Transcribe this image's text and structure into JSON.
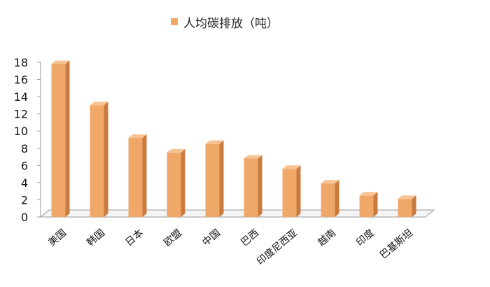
{
  "chart_data": {
    "type": "bar",
    "title": "",
    "xlabel": "",
    "ylabel": "",
    "ylim": [
      0,
      18
    ],
    "yticks": [
      0,
      2,
      4,
      6,
      8,
      10,
      12,
      14,
      16,
      18
    ],
    "categories": [
      "美国",
      "韩国",
      "日本",
      "欧盟",
      "中国",
      "巴西",
      "印度尼西亚",
      "越南",
      "印度",
      "巴基斯坦"
    ],
    "series": [
      {
        "name": "人均碳排放（吨）",
        "values": [
          17.8,
          13.0,
          9.2,
          7.5,
          8.5,
          6.8,
          5.6,
          3.9,
          2.5,
          2.1
        ]
      }
    ],
    "grid": false,
    "legend": "top",
    "colors": {
      "bar_front": "#f0a868",
      "bar_side": "#c97a3f",
      "bar_top": "#f7c393",
      "axis": "#9a9a9a"
    }
  }
}
